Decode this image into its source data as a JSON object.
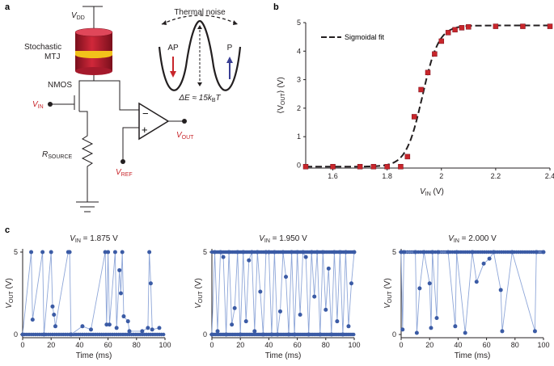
{
  "panels": {
    "a": "a",
    "b": "b",
    "c": "c"
  },
  "circuit": {
    "vdd": "V",
    "vdd_sub": "DD",
    "mtj_line1": "Stochastic",
    "mtj_line2": "MTJ",
    "nmos": "NMOS",
    "vin": "V",
    "vin_sub": "IN",
    "rsource": "R",
    "rsource_sub": "SOURCE",
    "vref": "V",
    "vref_sub": "REF",
    "vout": "V",
    "vout_sub": "OUT",
    "minus": "−",
    "plus": "+"
  },
  "energy": {
    "title": "Thermal noise",
    "ap": "AP",
    "p": "P",
    "barrier_prefix": "ΔE ≈ 15k",
    "barrier_sub": "B",
    "barrier_suffix": "T"
  },
  "colors": {
    "red": "#c8262b",
    "blue": "#3a3f94",
    "trace": "#8ea6d8",
    "marker": "#3b5ba5"
  },
  "chart_data": [
    {
      "type": "scatter",
      "panel": "b",
      "xlabel": "V",
      "xlabel_sub": "IN",
      "xlabel_unit": "(V)",
      "ylabel": "⟨V",
      "ylabel_sub": "OUT",
      "ylabel_unit": "⟩ (V)",
      "xlim": [
        1.5,
        2.4
      ],
      "ylim": [
        -0.1,
        5.0
      ],
      "xticks": [
        "1.6",
        "1.8",
        "2",
        "2.2",
        "2.4"
      ],
      "yticks": [
        "0",
        "1",
        "2",
        "3",
        "4",
        "5"
      ],
      "legend": "Sigmoidal fit",
      "legend_position": "top-left",
      "series": [
        {
          "marker": "square",
          "x": [
            1.5,
            1.6,
            1.7,
            1.75,
            1.8,
            1.85,
            1.875,
            1.9,
            1.925,
            1.95,
            1.975,
            2.0,
            2.025,
            2.05,
            2.075,
            2.1,
            2.2,
            2.3,
            2.4
          ],
          "values": [
            -0.05,
            -0.05,
            -0.05,
            -0.05,
            -0.05,
            -0.05,
            0.3,
            1.7,
            2.65,
            3.25,
            3.9,
            4.35,
            4.65,
            4.75,
            4.82,
            4.85,
            4.87,
            4.87,
            4.87
          ]
        },
        {
          "line": "dashed",
          "fit_midpoint": 1.93,
          "fit_width": 0.03,
          "fit_low": -0.05,
          "fit_high": 4.9
        }
      ]
    },
    {
      "type": "line",
      "panel": "c1",
      "title_prefix": "V",
      "title_sub": "IN",
      "title_suffix": " = 1.875 V",
      "xlabel": "Time (ms)",
      "ylabel": "V",
      "ylabel_sub": "OUT",
      "ylabel_unit": " (V)",
      "xlim": [
        0,
        100
      ],
      "ylim": [
        0,
        5
      ],
      "xticks": [
        "0",
        "20",
        "40",
        "60",
        "80",
        "100"
      ],
      "yticks": [
        "0",
        "5"
      ],
      "x": [
        0,
        6,
        7,
        14,
        15,
        20,
        21,
        22,
        23,
        32,
        33,
        34,
        42,
        48,
        58,
        59,
        60,
        61,
        65,
        66,
        68,
        69,
        70,
        71,
        74,
        75,
        84,
        88,
        89,
        90,
        91,
        96
      ],
      "values": [
        0,
        5,
        0.9,
        5,
        0,
        5,
        1.7,
        1.2,
        0.5,
        5,
        5,
        0,
        0.5,
        0.3,
        5,
        0.6,
        5,
        0.6,
        5,
        0.4,
        3.9,
        2.5,
        5,
        1.1,
        0.8,
        0.2,
        0.2,
        0.4,
        5,
        3.1,
        0.3,
        0.4
      ]
    },
    {
      "type": "line",
      "panel": "c2",
      "title_prefix": "V",
      "title_sub": "IN",
      "title_suffix": " = 1.950 V",
      "xlabel": "Time (ms)",
      "ylabel": "V",
      "ylabel_sub": "OUT",
      "ylabel_unit": " (V)",
      "xlim": [
        0,
        100
      ],
      "ylim": [
        0,
        5
      ],
      "xticks": [
        "0",
        "20",
        "40",
        "60",
        "80",
        "100"
      ],
      "yticks": [
        "0",
        "5"
      ],
      "x": [
        0,
        2,
        4,
        6,
        8,
        10,
        12,
        14,
        16,
        18,
        20,
        22,
        24,
        26,
        28,
        30,
        32,
        34,
        36,
        38,
        40,
        42,
        44,
        46,
        48,
        50,
        52,
        54,
        56,
        58,
        60,
        62,
        64,
        66,
        68,
        70,
        72,
        74,
        76,
        78,
        80,
        82,
        84,
        86,
        88,
        90,
        92,
        94,
        96,
        98,
        100
      ],
      "values": [
        0,
        5,
        0.2,
        5,
        4.7,
        0,
        5,
        0.6,
        1.6,
        5,
        0,
        5,
        0.8,
        4.5,
        5,
        0.2,
        5,
        2.6,
        0,
        5,
        5,
        0,
        5,
        0,
        1.4,
        5,
        3.5,
        0,
        5,
        0,
        5,
        1.2,
        5,
        4.7,
        0,
        5,
        2.3,
        5,
        0,
        5,
        1.5,
        4.0,
        0,
        5,
        0.8,
        5,
        0,
        5,
        0.5,
        3.1,
        5
      ]
    },
    {
      "type": "line",
      "panel": "c3",
      "title_prefix": "V",
      "title_sub": "IN",
      "title_suffix": " = 2.000 V",
      "xlabel": "Time (ms)",
      "ylabel": "V",
      "ylabel_sub": "OUT",
      "ylabel_unit": " (V)",
      "xlim": [
        0,
        100
      ],
      "ylim": [
        0,
        5
      ],
      "xticks": [
        "0",
        "20",
        "40",
        "60",
        "80",
        "100"
      ],
      "yticks": [
        "0",
        "5"
      ],
      "x": [
        0,
        1,
        2,
        10,
        11,
        13,
        16,
        20,
        21,
        22,
        25,
        26,
        33,
        38,
        39,
        45,
        50,
        53,
        58,
        62,
        65,
        70,
        71,
        78,
        94,
        95,
        100
      ],
      "values": [
        5,
        0.3,
        5,
        5,
        0.1,
        2.8,
        5,
        3.1,
        0.4,
        5,
        1.0,
        5,
        5,
        0.5,
        5,
        0.1,
        5,
        3.2,
        4.3,
        4.6,
        5,
        2.7,
        0.2,
        5,
        0.2,
        5,
        5
      ]
    }
  ]
}
